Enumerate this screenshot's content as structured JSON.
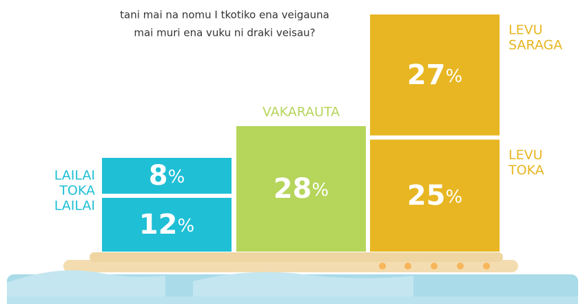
{
  "chart_data": {
    "type": "stacked-boxes",
    "title_lines": [
      "tani mai na nomu I tkotiko ena veigauna",
      "mai muri ena vuku ni draki veisau?"
    ],
    "unit": "%",
    "columns": [
      {
        "label_lines": [
          "LAILAI",
          "TOKA",
          "LAILAI"
        ],
        "color": "#1fbfd5",
        "segments": [
          {
            "value": 8
          },
          {
            "value": 12
          }
        ]
      },
      {
        "label_lines": [
          "VAKARAUTA"
        ],
        "color": "#b6d55b",
        "segments": [
          {
            "value": 28
          }
        ]
      },
      {
        "color": "#e7b622",
        "segments": [
          {
            "label_lines": [
              "LEVU",
              "SARAGA"
            ],
            "value": 27
          },
          {
            "label_lines": [
              "LEVU",
              "TOKA"
            ],
            "value": 25
          }
        ]
      }
    ]
  }
}
